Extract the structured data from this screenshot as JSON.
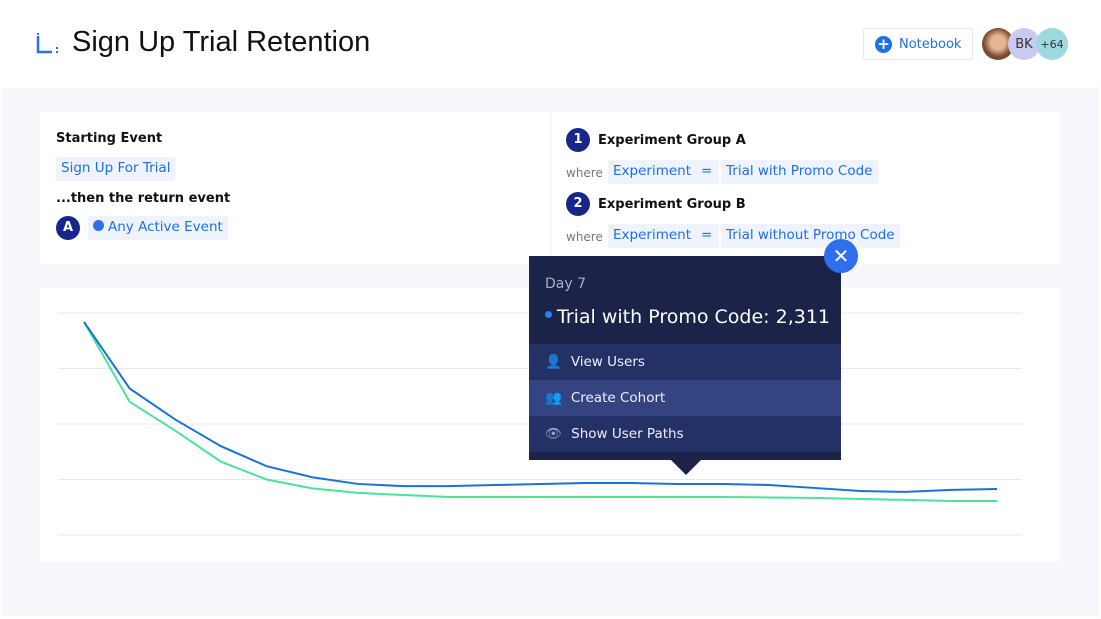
{
  "header": {
    "title": "Sign Up Trial Retention",
    "notebook_label": "Notebook",
    "avatars": [
      "BK",
      "+64"
    ]
  },
  "query": {
    "starting_event_label": "Starting Event",
    "starting_event": "Sign Up For Trial",
    "return_label": "...then the return event",
    "return_badge": "A",
    "return_event": "Any Active Event",
    "groups": [
      {
        "num": "1",
        "name": "Experiment Group A",
        "where": "where",
        "property": "Experiment",
        "op": "=",
        "value": "Trial with Promo Code"
      },
      {
        "num": "2",
        "name": "Experiment Group B",
        "where": "where",
        "property": "Experiment",
        "op": "=",
        "value": "Trial without Promo Code"
      }
    ]
  },
  "tooltip": {
    "day": "Day 7",
    "series": "Trial with Promo Code: 2,311",
    "actions": [
      "View Users",
      "Create Cohort",
      "Show User Paths"
    ]
  },
  "chart_data": {
    "type": "line",
    "grid": true,
    "ylim": [
      0,
      100
    ],
    "series": [
      {
        "color": "#1a73d4",
        "values": [
          96,
          66,
          52,
          40,
          31,
          26,
          23,
          22,
          22,
          22.5,
          23,
          23.4,
          23.4,
          23,
          23,
          22.5,
          21.2,
          19.8,
          19.4,
          20.3,
          20.7
        ]
      },
      {
        "color": "#4be39a",
        "values": [
          96,
          60,
          47,
          33,
          25,
          21,
          19,
          18,
          17.1,
          17.1,
          17.1,
          17.1,
          17.1,
          17.1,
          17.1,
          16.9,
          16.7,
          16.2,
          15.8,
          15.3,
          15.3
        ]
      }
    ]
  }
}
